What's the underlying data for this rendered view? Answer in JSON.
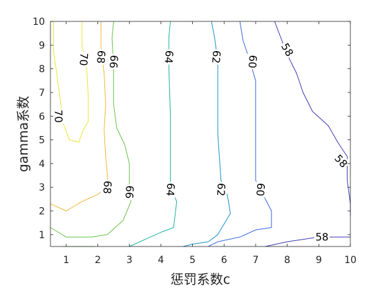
{
  "chart_data": {
    "type": "contour",
    "title": "",
    "xlabel": "惩罚系数c",
    "ylabel": "gamma系数",
    "xlim": [
      0.5,
      10
    ],
    "ylim": [
      0.5,
      10
    ],
    "xticks": [
      1,
      2,
      3,
      4,
      5,
      6,
      7,
      8,
      9,
      10
    ],
    "yticks": [
      1,
      2,
      3,
      4,
      5,
      6,
      7,
      8,
      9,
      10
    ],
    "grid": false,
    "colormap": "parula",
    "levels": [
      {
        "value": 70,
        "color": "#ebe53a",
        "paths": [
          [
            [
              0.6,
              10
            ],
            [
              0.6,
              8.7
            ],
            [
              0.7,
              7.8
            ],
            [
              0.8,
              6.8
            ],
            [
              0.85,
              6.3
            ],
            [
              0.9,
              5.7
            ],
            [
              1.1,
              5.0
            ],
            [
              1.4,
              4.9
            ],
            [
              1.5,
              5.3
            ],
            [
              1.7,
              5.8
            ],
            [
              1.7,
              6.8
            ],
            [
              1.65,
              8.0
            ],
            [
              1.5,
              9.0
            ],
            [
              1.5,
              10
            ]
          ]
        ],
        "labels": [
          {
            "text": "70",
            "x": 1.55,
            "y": 8.4,
            "rot": 94
          },
          {
            "text": "70",
            "x": 0.75,
            "y": 6.0,
            "rot": 88
          }
        ]
      },
      {
        "value": 68,
        "color": "#f2b83a",
        "paths": [
          [
            [
              2.1,
              10
            ],
            [
              2.1,
              8.9
            ],
            [
              2.2,
              7.8
            ],
            [
              2.25,
              6.5
            ],
            [
              2.2,
              5.4
            ],
            [
              2.25,
              4.3
            ],
            [
              2.3,
              3.6
            ],
            [
              2.3,
              3.0
            ],
            [
              2.0,
              2.7
            ],
            [
              1.5,
              2.4
            ],
            [
              1.0,
              2.0
            ],
            [
              0.5,
              2.3
            ]
          ]
        ],
        "labels": [
          {
            "text": "68",
            "x": 2.1,
            "y": 8.5,
            "rot": 94
          },
          {
            "text": "68",
            "x": 2.3,
            "y": 3.0,
            "rot": 94
          }
        ]
      },
      {
        "value": 66,
        "color": "#6cc24a",
        "paths": [
          [
            [
              2.5,
              10
            ],
            [
              2.45,
              9.3
            ],
            [
              2.5,
              8.0
            ],
            [
              2.5,
              6.5
            ],
            [
              2.6,
              5.5
            ],
            [
              2.85,
              4.8
            ],
            [
              3.0,
              4.0
            ],
            [
              3.0,
              3.0
            ],
            [
              3.05,
              2.4
            ],
            [
              2.8,
              1.6
            ],
            [
              2.3,
              1.0
            ],
            [
              1.8,
              0.9
            ],
            [
              1.0,
              0.9
            ],
            [
              0.5,
              1.3
            ]
          ],
          [
            [
              1.9,
              0.5
            ],
            [
              0.9,
              0.5
            ]
          ]
        ],
        "labels": [
          {
            "text": "66",
            "x": 2.5,
            "y": 8.3,
            "rot": 94
          },
          {
            "text": "66",
            "x": 3.0,
            "y": 2.8,
            "rot": 94
          }
        ]
      },
      {
        "value": 64,
        "color": "#1fb2a2",
        "paths": [
          [
            [
              4.3,
              10
            ],
            [
              4.25,
              9.3
            ],
            [
              4.25,
              8.1
            ],
            [
              4.3,
              6.0
            ],
            [
              4.3,
              4.0
            ],
            [
              4.3,
              3.0
            ],
            [
              4.5,
              2.4
            ],
            [
              4.4,
              1.3
            ],
            [
              4.0,
              1.1
            ],
            [
              3.5,
              0.8
            ],
            [
              3.0,
              0.5
            ]
          ]
        ],
        "labels": [
          {
            "text": "64",
            "x": 4.25,
            "y": 8.5,
            "rot": 94
          },
          {
            "text": "64",
            "x": 4.3,
            "y": 2.9,
            "rot": 94
          }
        ]
      },
      {
        "value": 62,
        "color": "#1c93c8",
        "paths": [
          [
            [
              5.6,
              10
            ],
            [
              5.7,
              9.3
            ],
            [
              5.8,
              8.3
            ],
            [
              5.8,
              6.8
            ],
            [
              5.8,
              5.3
            ],
            [
              5.85,
              4.3
            ],
            [
              5.9,
              3.3
            ],
            [
              6.1,
              2.7
            ],
            [
              6.2,
              1.9
            ],
            [
              5.8,
              1.0
            ],
            [
              5.5,
              0.7
            ],
            [
              5.0,
              0.6
            ],
            [
              4.7,
              0.5
            ]
          ]
        ],
        "labels": [
          {
            "text": "62",
            "x": 5.75,
            "y": 8.5,
            "rot": 94
          },
          {
            "text": "62",
            "x": 5.9,
            "y": 2.9,
            "rot": 94
          }
        ]
      },
      {
        "value": 60,
        "color": "#3b6ae0",
        "paths": [
          [
            [
              6.5,
              10
            ],
            [
              6.6,
              9.2
            ],
            [
              6.8,
              8.4
            ],
            [
              7.0,
              7.5
            ],
            [
              7.0,
              6.0
            ],
            [
              7.0,
              4.6
            ],
            [
              7.0,
              3.3
            ],
            [
              7.5,
              2.0
            ],
            [
              7.5,
              1.3
            ],
            [
              7.0,
              1.2
            ],
            [
              6.5,
              0.9
            ],
            [
              5.8,
              0.7
            ],
            [
              5.5,
              0.5
            ]
          ]
        ],
        "labels": [
          {
            "text": "60",
            "x": 6.9,
            "y": 8.3,
            "rot": 94
          },
          {
            "text": "60",
            "x": 7.15,
            "y": 2.9,
            "rot": 94
          }
        ]
      },
      {
        "value": 58,
        "color": "#3f3fb5",
        "paths": [
          [
            [
              7.6,
              10
            ],
            [
              7.8,
              9.3
            ],
            [
              8.0,
              8.6
            ],
            [
              8.3,
              7.8
            ],
            [
              8.5,
              7.0
            ],
            [
              8.8,
              6.2
            ],
            [
              9.3,
              5.6
            ],
            [
              9.6,
              4.9
            ],
            [
              9.9,
              4.3
            ],
            [
              9.9,
              3.3
            ],
            [
              10.0,
              2.3
            ],
            [
              10.0,
              1.8
            ]
          ],
          [
            [
              7.3,
              0.5
            ],
            [
              8.0,
              0.7
            ],
            [
              9.0,
              0.9
            ],
            [
              10.0,
              0.9
            ]
          ]
        ],
        "labels": [
          {
            "text": "58",
            "x": 8.0,
            "y": 8.8,
            "rot": 60
          },
          {
            "text": "58",
            "x": 9.7,
            "y": 4.1,
            "rot": 48
          },
          {
            "text": "58",
            "x": 9.1,
            "y": 0.9,
            "rot": 0
          }
        ]
      }
    ]
  }
}
